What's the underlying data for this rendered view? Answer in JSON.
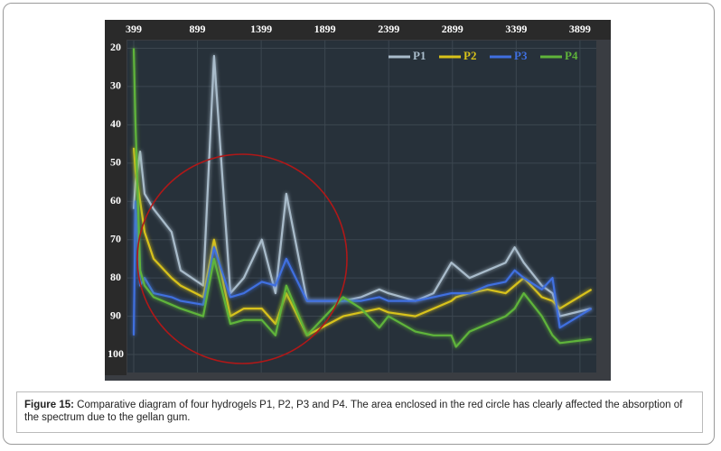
{
  "chart_data": {
    "type": "line",
    "x": [
      399,
      413,
      449,
      484,
      555,
      696,
      767,
      944,
      1029,
      1157,
      1263,
      1404,
      1511,
      1596,
      1758,
      2042,
      2183,
      2325,
      2396,
      2608,
      2750,
      2891,
      2927,
      3033,
      3174,
      3316,
      3387,
      3458,
      3600,
      3684,
      3741,
      3989
    ],
    "series": [
      {
        "name": "P1",
        "color": "#a9bccb",
        "values": [
          62,
          55,
          47,
          58,
          62,
          68,
          78,
          82,
          22,
          84,
          80,
          70,
          84,
          58,
          86,
          86,
          85,
          83,
          84,
          86,
          84,
          76,
          77,
          80,
          78,
          76,
          72,
          76,
          82,
          84,
          90,
          88
        ]
      },
      {
        "name": "P2",
        "color": "#d8c21a",
        "values": [
          46,
          52,
          60,
          68,
          75,
          80,
          82,
          85,
          70,
          90,
          88,
          88,
          92,
          84,
          95,
          90,
          89,
          88,
          89,
          90,
          88,
          86,
          85,
          84,
          83,
          84,
          82,
          80,
          85,
          86,
          88,
          83
        ]
      },
      {
        "name": "P3",
        "color": "#3f6fe0",
        "values": [
          95,
          60,
          82,
          80,
          84,
          85,
          86,
          87,
          72,
          85,
          84,
          81,
          82,
          75,
          86,
          86,
          86,
          85,
          86,
          86,
          85,
          84,
          84,
          84,
          82,
          81,
          78,
          80,
          83,
          80,
          93,
          88
        ]
      },
      {
        "name": "P4",
        "color": "#5fb43a",
        "values": [
          20,
          40,
          78,
          82,
          85,
          87,
          88,
          90,
          75,
          92,
          91,
          91,
          95,
          82,
          95,
          85,
          88,
          93,
          90,
          94,
          95,
          95,
          98,
          94,
          92,
          90,
          88,
          84,
          90,
          95,
          97,
          96
        ]
      }
    ],
    "xlim": [
      399,
      3999
    ],
    "xticks": [
      399,
      899,
      1399,
      1899,
      2399,
      2899,
      3399,
      3899
    ],
    "ylim": [
      18,
      104
    ],
    "yticks": [
      20,
      30,
      40,
      50,
      60,
      70,
      80,
      90,
      100
    ],
    "y_inverted": true,
    "x_axis_position": "top",
    "grid": true,
    "legend": "upper right"
  },
  "caption": {
    "label": "Figure 15:",
    "text": " Comparative diagram of four hydrogels P1, P2, P3 and P4. The area enclosed in the red circle has clearly affected the absorption of the spectrum due to the gellan gum."
  }
}
